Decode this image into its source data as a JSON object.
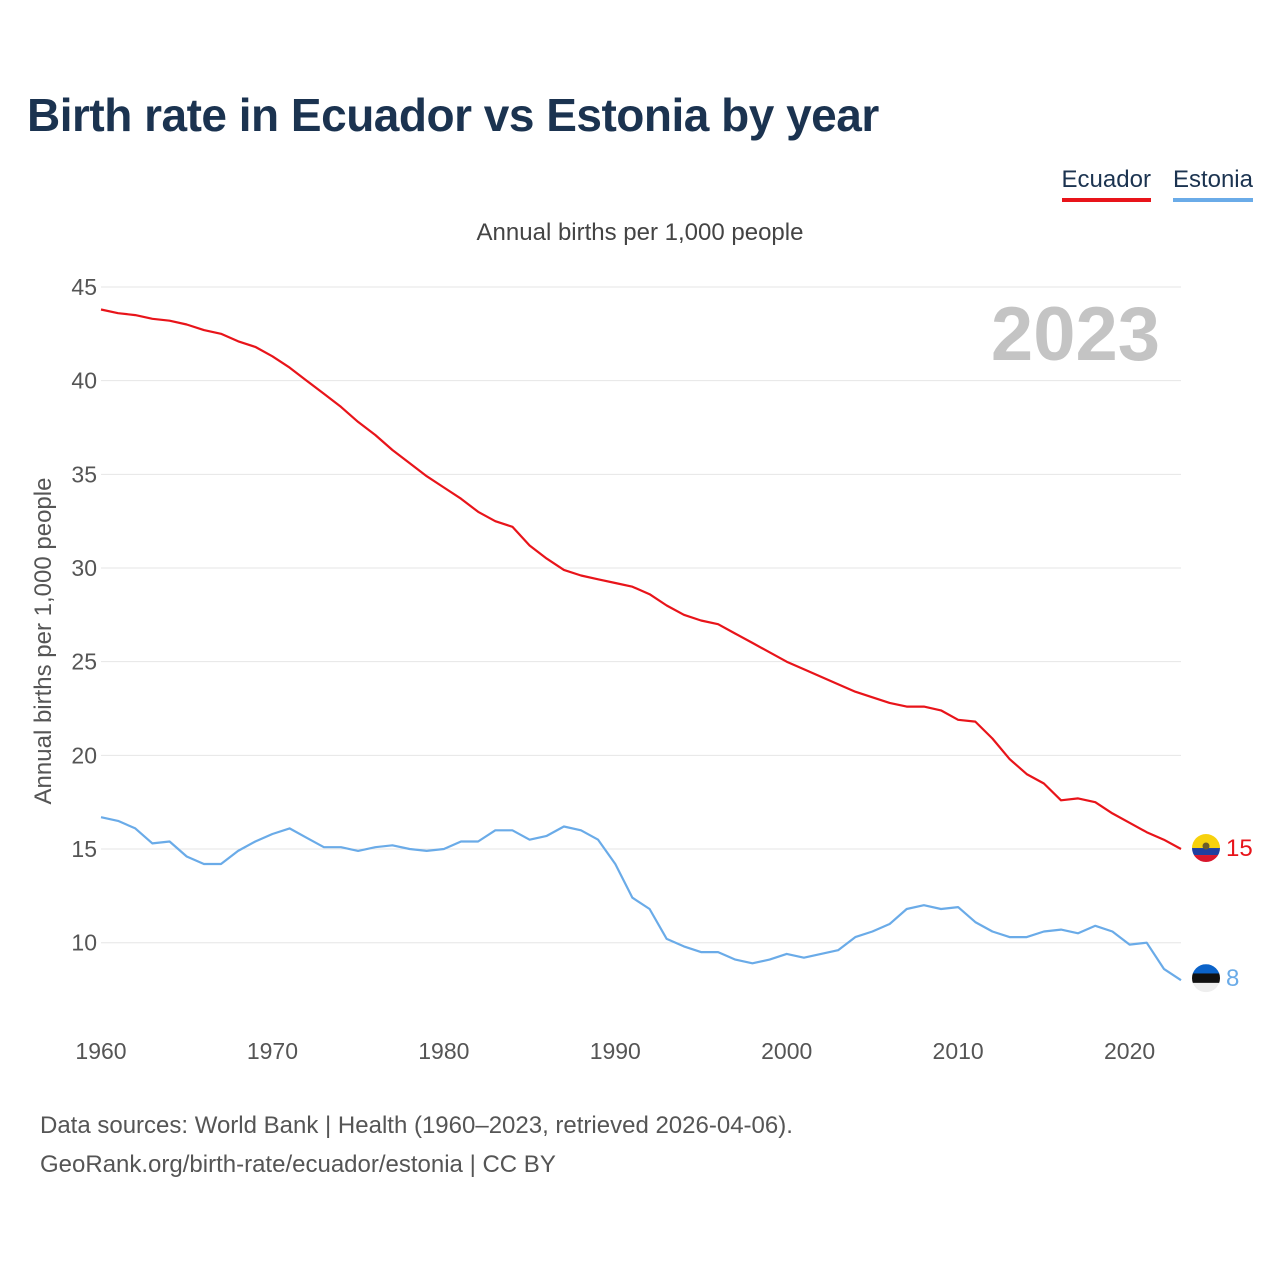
{
  "title": "Birth rate in Ecuador vs Estonia by year",
  "legend": [
    {
      "name": "Ecuador",
      "color": "#e8141a"
    },
    {
      "name": "Estonia",
      "color": "#6aabe8"
    }
  ],
  "footer": {
    "source_line": "Data sources: World Bank | Health (1960–2023, retrieved 2026-04-06).",
    "credit_line": "GeoRank.org/birth-rate/ecuador/estonia | CC BY"
  },
  "chart_data": {
    "type": "line",
    "subtitle": "Annual births per 1,000 people",
    "ylabel": "Annual births per 1,000 people",
    "xlabel": "",
    "year_watermark": "2023",
    "ylim": [
      5.5,
      45
    ],
    "xlim": [
      1960,
      2023
    ],
    "yticks": [
      10,
      15,
      20,
      25,
      30,
      35,
      40,
      45
    ],
    "xticks": [
      1960,
      1970,
      1980,
      1990,
      2000,
      2010,
      2020
    ],
    "x": [
      1960,
      1961,
      1962,
      1963,
      1964,
      1965,
      1966,
      1967,
      1968,
      1969,
      1970,
      1971,
      1972,
      1973,
      1974,
      1975,
      1976,
      1977,
      1978,
      1979,
      1980,
      1981,
      1982,
      1983,
      1984,
      1985,
      1986,
      1987,
      1988,
      1989,
      1990,
      1991,
      1992,
      1993,
      1994,
      1995,
      1996,
      1997,
      1998,
      1999,
      2000,
      2001,
      2002,
      2003,
      2004,
      2005,
      2006,
      2007,
      2008,
      2009,
      2010,
      2011,
      2012,
      2013,
      2014,
      2015,
      2016,
      2017,
      2018,
      2019,
      2020,
      2021,
      2022,
      2023
    ],
    "series": [
      {
        "name": "Ecuador",
        "color": "#e8141a",
        "end_label": "15",
        "values": [
          43.8,
          43.6,
          43.5,
          43.3,
          43.2,
          43.0,
          42.7,
          42.5,
          42.1,
          41.8,
          41.3,
          40.7,
          40.0,
          39.3,
          38.6,
          37.8,
          37.1,
          36.3,
          35.6,
          34.9,
          34.3,
          33.7,
          33.0,
          32.5,
          32.2,
          31.2,
          30.5,
          29.9,
          29.6,
          29.4,
          29.2,
          29.0,
          28.6,
          28.0,
          27.5,
          27.2,
          27.0,
          26.5,
          26.0,
          25.5,
          25.0,
          24.6,
          24.2,
          23.8,
          23.4,
          23.1,
          22.8,
          22.6,
          22.6,
          22.4,
          21.9,
          21.8,
          20.9,
          19.8,
          19.0,
          18.5,
          17.6,
          17.7,
          17.5,
          16.9,
          16.4,
          15.9,
          15.5,
          15.0
        ]
      },
      {
        "name": "Estonia",
        "color": "#6aabe8",
        "end_label": "8",
        "values": [
          16.7,
          16.5,
          16.1,
          15.3,
          15.4,
          14.6,
          14.2,
          14.2,
          14.9,
          15.4,
          15.8,
          16.1,
          15.6,
          15.1,
          15.1,
          14.9,
          15.1,
          15.2,
          15.0,
          14.9,
          15.0,
          15.4,
          15.4,
          16.0,
          16.0,
          15.5,
          15.7,
          16.2,
          16.0,
          15.5,
          14.2,
          12.4,
          11.8,
          10.2,
          9.8,
          9.5,
          9.5,
          9.1,
          8.9,
          9.1,
          9.4,
          9.2,
          9.4,
          9.6,
          10.3,
          10.6,
          11.0,
          11.8,
          12.0,
          11.8,
          11.9,
          11.1,
          10.6,
          10.3,
          10.3,
          10.6,
          10.7,
          10.5,
          10.9,
          10.6,
          9.9,
          10.0,
          8.6,
          8.0
        ]
      }
    ]
  }
}
